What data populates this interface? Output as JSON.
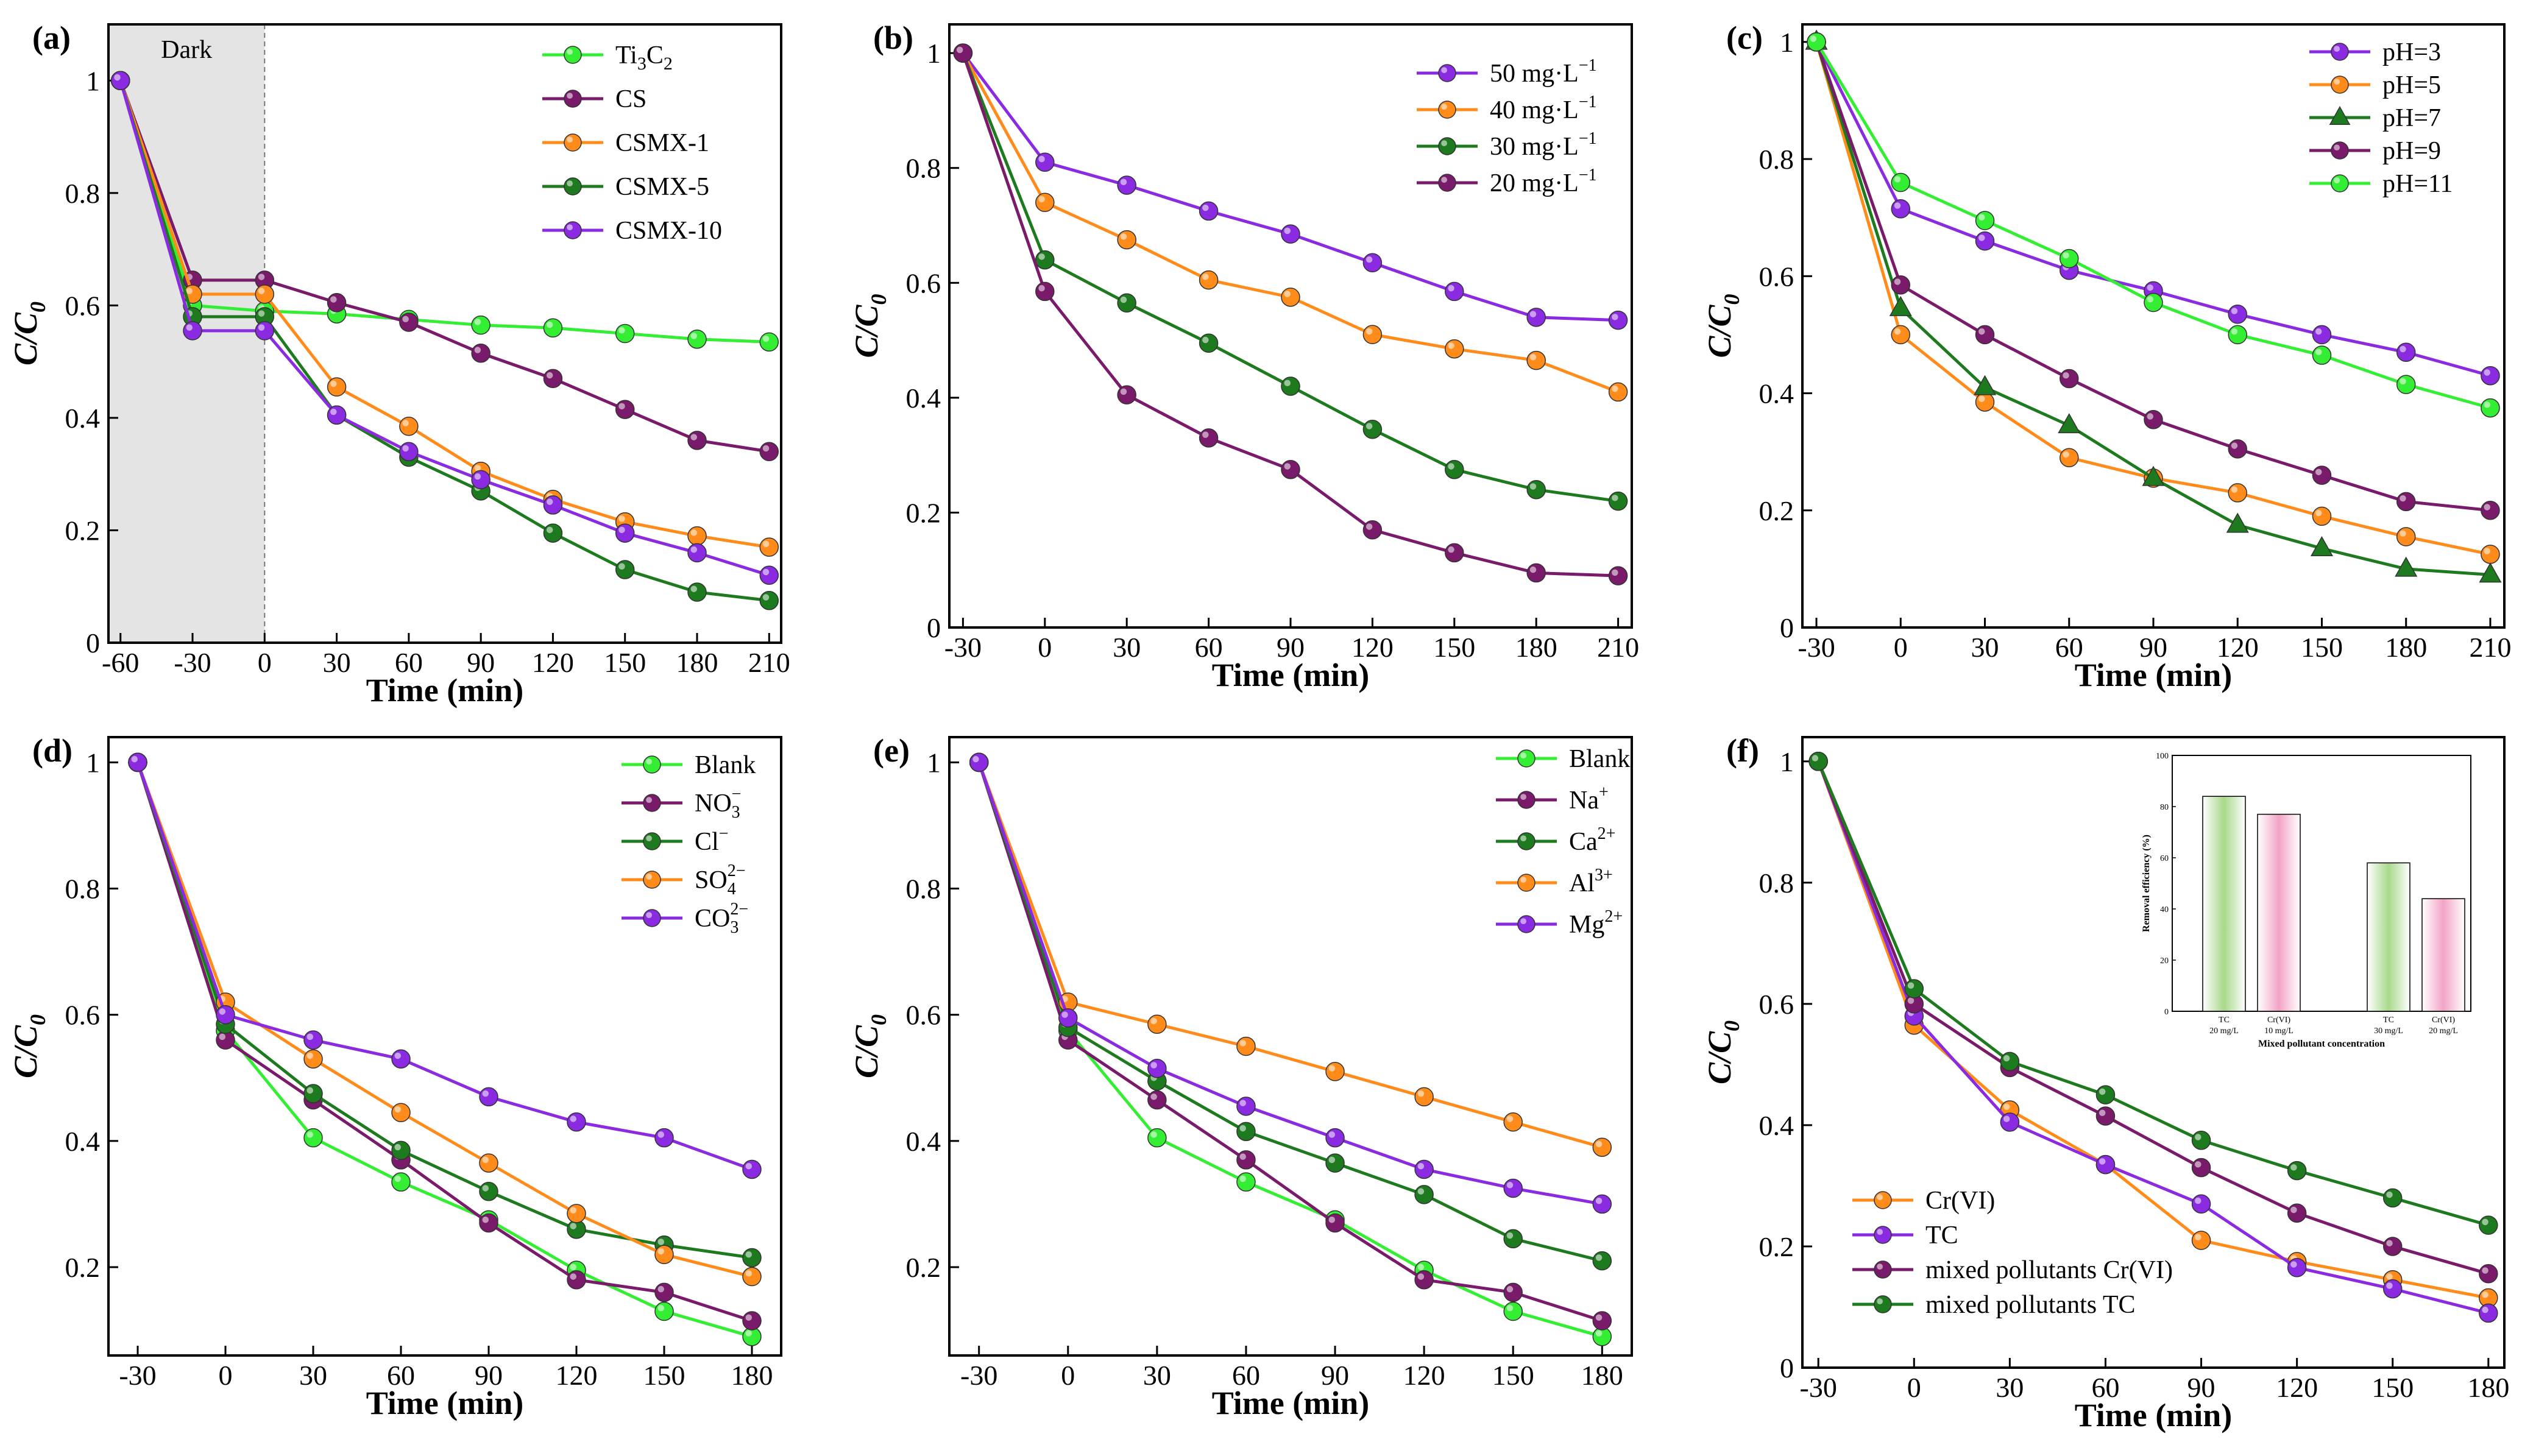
{
  "figure": {
    "panel_count": 6
  },
  "chart_data": [
    {
      "id": "a",
      "panel_label": "(a)",
      "type": "line",
      "xlabel": "Time (min)",
      "ylabel": "C/C0",
      "xlim": [
        -65,
        215
      ],
      "ylim": [
        0,
        1.1
      ],
      "xticks": [
        -60,
        -30,
        0,
        30,
        60,
        90,
        120,
        150,
        180,
        210
      ],
      "yticks": [
        0.0,
        0.2,
        0.4,
        0.6,
        0.8,
        1.0
      ],
      "annotation": {
        "text": "Dark",
        "x_from": -65,
        "x_to": 0,
        "color": "#e4e4e4"
      },
      "legend_position": "top-right",
      "series": [
        {
          "name": "Ti3C2",
          "label_main": "Ti",
          "label_sub": [
            "3",
            "2"
          ],
          "label_parts": [
            "Ti",
            "3",
            "C",
            "2"
          ],
          "color": "#33ee33",
          "marker": "circle",
          "x": [
            -60,
            -30,
            0,
            30,
            60,
            90,
            120,
            150,
            180,
            210
          ],
          "values": [
            1.0,
            0.6,
            0.59,
            0.585,
            0.575,
            0.565,
            0.56,
            0.55,
            0.54,
            0.535
          ]
        },
        {
          "name": "CS",
          "color": "#7a1a6a",
          "marker": "circle",
          "x": [
            -60,
            -30,
            0,
            30,
            60,
            90,
            120,
            150,
            180,
            210
          ],
          "values": [
            1.0,
            0.645,
            0.645,
            0.605,
            0.57,
            0.515,
            0.47,
            0.415,
            0.36,
            0.34
          ]
        },
        {
          "name": "CSMX-1",
          "color": "#ff8c1a",
          "marker": "circle",
          "x": [
            -60,
            -30,
            0,
            30,
            60,
            90,
            120,
            150,
            180,
            210
          ],
          "values": [
            1.0,
            0.62,
            0.62,
            0.455,
            0.385,
            0.305,
            0.255,
            0.215,
            0.19,
            0.17
          ]
        },
        {
          "name": "CSMX-5",
          "color": "#1e7a1e",
          "marker": "circle",
          "x": [
            -60,
            -30,
            0,
            30,
            60,
            90,
            120,
            150,
            180,
            210
          ],
          "values": [
            1.0,
            0.58,
            0.58,
            0.405,
            0.33,
            0.27,
            0.195,
            0.13,
            0.09,
            0.075
          ]
        },
        {
          "name": "CSMX-10",
          "color": "#8a2be2",
          "marker": "circle",
          "x": [
            -60,
            -30,
            0,
            30,
            60,
            90,
            120,
            150,
            180,
            210
          ],
          "values": [
            1.0,
            0.555,
            0.555,
            0.405,
            0.34,
            0.29,
            0.245,
            0.195,
            0.16,
            0.12
          ]
        }
      ]
    },
    {
      "id": "b",
      "panel_label": "(b)",
      "type": "line",
      "xlabel": "Time (min)",
      "ylabel": "C/C0",
      "xlim": [
        -35,
        215
      ],
      "ylim": [
        0,
        1.05
      ],
      "xticks": [
        -30,
        0,
        30,
        60,
        90,
        120,
        150,
        180,
        210
      ],
      "yticks": [
        0.0,
        0.2,
        0.4,
        0.6,
        0.8,
        1.0
      ],
      "legend_position": "top-right",
      "series": [
        {
          "name": "50 mg·L−1",
          "label_main": "50  mg·L",
          "label_sup": "−1",
          "color": "#8a2be2",
          "marker": "circle",
          "x": [
            -30,
            0,
            30,
            60,
            90,
            120,
            150,
            180,
            210
          ],
          "values": [
            1.0,
            0.81,
            0.77,
            0.725,
            0.685,
            0.635,
            0.585,
            0.54,
            0.535
          ]
        },
        {
          "name": "40 mg·L−1",
          "label_main": "40  mg·L",
          "label_sup": "−1",
          "color": "#ff8c1a",
          "marker": "circle",
          "x": [
            -30,
            0,
            30,
            60,
            90,
            120,
            150,
            180,
            210
          ],
          "values": [
            1.0,
            0.74,
            0.675,
            0.605,
            0.575,
            0.51,
            0.485,
            0.465,
            0.41
          ]
        },
        {
          "name": "30 mg·L−1",
          "label_main": "30  mg·L",
          "label_sup": "−1",
          "color": "#1e7a1e",
          "marker": "circle",
          "x": [
            -30,
            0,
            30,
            60,
            90,
            120,
            150,
            180,
            210
          ],
          "values": [
            1.0,
            0.64,
            0.565,
            0.495,
            0.42,
            0.345,
            0.275,
            0.24,
            0.22
          ]
        },
        {
          "name": "20 mg·L−1",
          "label_main": "20  mg·L",
          "label_sup": "−1",
          "color": "#7a1a6a",
          "marker": "circle",
          "x": [
            -30,
            0,
            30,
            60,
            90,
            120,
            150,
            180,
            210
          ],
          "values": [
            1.0,
            0.585,
            0.405,
            0.33,
            0.275,
            0.17,
            0.13,
            0.095,
            0.09
          ]
        }
      ]
    },
    {
      "id": "c",
      "panel_label": "(c)",
      "type": "line",
      "xlabel": "Time (min)",
      "ylabel": "C/C0",
      "xlim": [
        -35,
        215
      ],
      "ylim": [
        0,
        1.03
      ],
      "xticks": [
        -30,
        0,
        30,
        60,
        90,
        120,
        150,
        180,
        210
      ],
      "yticks": [
        0.0,
        0.2,
        0.4,
        0.6,
        0.8,
        1.0
      ],
      "legend_position": "top-right",
      "series": [
        {
          "name": "pH=3",
          "color": "#8a2be2",
          "marker": "circle",
          "x": [
            -30,
            0,
            30,
            60,
            90,
            120,
            150,
            180,
            210
          ],
          "values": [
            1.0,
            0.715,
            0.66,
            0.61,
            0.575,
            0.535,
            0.5,
            0.47,
            0.43
          ]
        },
        {
          "name": "pH=5",
          "color": "#ff8c1a",
          "marker": "circle",
          "x": [
            -30,
            0,
            30,
            60,
            90,
            120,
            150,
            180,
            210
          ],
          "values": [
            1.0,
            0.5,
            0.385,
            0.29,
            0.255,
            0.23,
            0.19,
            0.155,
            0.125
          ]
        },
        {
          "name": "pH=7",
          "color": "#1e7a1e",
          "marker": "triangle",
          "x": [
            -30,
            0,
            30,
            60,
            90,
            120,
            150,
            180,
            210
          ],
          "values": [
            1.0,
            0.545,
            0.41,
            0.345,
            0.255,
            0.175,
            0.135,
            0.1,
            0.09
          ]
        },
        {
          "name": "pH=9",
          "color": "#7a1a6a",
          "marker": "circle",
          "x": [
            -30,
            0,
            30,
            60,
            90,
            120,
            150,
            180,
            210
          ],
          "values": [
            1.0,
            0.585,
            0.5,
            0.425,
            0.355,
            0.305,
            0.26,
            0.215,
            0.2
          ]
        },
        {
          "name": "pH=11",
          "color": "#33ee33",
          "marker": "circle",
          "x": [
            -30,
            0,
            30,
            60,
            90,
            120,
            150,
            180,
            210
          ],
          "values": [
            1.0,
            0.76,
            0.695,
            0.63,
            0.555,
            0.5,
            0.465,
            0.415,
            0.375
          ]
        }
      ]
    },
    {
      "id": "d",
      "panel_label": "(d)",
      "type": "line",
      "xlabel": "Time (min)",
      "ylabel": "C/C0",
      "xlim": [
        -40,
        190
      ],
      "ylim": [
        0.06,
        1.04
      ],
      "xticks": [
        -30,
        0,
        30,
        60,
        90,
        120,
        150,
        180
      ],
      "yticks": [
        0.2,
        0.4,
        0.6,
        0.8,
        1.0
      ],
      "legend_position": "top-right",
      "series": [
        {
          "name": "Blank",
          "color": "#33ee33",
          "marker": "circle",
          "x": [
            -30,
            0,
            30,
            60,
            90,
            120,
            150,
            180
          ],
          "values": [
            1.0,
            0.575,
            0.405,
            0.335,
            0.275,
            0.195,
            0.13,
            0.09
          ]
        },
        {
          "name": "NO3−",
          "label_main": "NO",
          "label_sub": "3",
          "label_sup": "−",
          "color": "#7a1a6a",
          "marker": "circle",
          "x": [
            -30,
            0,
            30,
            60,
            90,
            120,
            150,
            180
          ],
          "values": [
            1.0,
            0.56,
            0.465,
            0.37,
            0.27,
            0.18,
            0.16,
            0.115
          ]
        },
        {
          "name": "Cl−",
          "label_main": "Cl",
          "label_sup": "−",
          "color": "#1e7a1e",
          "marker": "circle",
          "x": [
            -30,
            0,
            30,
            60,
            90,
            120,
            150,
            180
          ],
          "values": [
            1.0,
            0.585,
            0.475,
            0.385,
            0.32,
            0.26,
            0.235,
            0.215
          ]
        },
        {
          "name": "SO42−",
          "label_main": "SO",
          "label_sub": "4",
          "label_sup": "2−",
          "color": "#ff8c1a",
          "marker": "circle",
          "x": [
            -30,
            0,
            30,
            60,
            90,
            120,
            150,
            180
          ],
          "values": [
            1.0,
            0.62,
            0.53,
            0.445,
            0.365,
            0.285,
            0.22,
            0.185
          ]
        },
        {
          "name": "CO32−",
          "label_main": "CO",
          "label_sub": "3",
          "label_sup": "2−",
          "color": "#8a2be2",
          "marker": "circle",
          "x": [
            -30,
            0,
            30,
            60,
            90,
            120,
            150,
            180
          ],
          "values": [
            1.0,
            0.6,
            0.56,
            0.53,
            0.47,
            0.43,
            0.405,
            0.355
          ]
        }
      ]
    },
    {
      "id": "e",
      "panel_label": "(e)",
      "type": "line",
      "xlabel": "Time (min)",
      "ylabel": "C/C0",
      "xlim": [
        -40,
        190
      ],
      "ylim": [
        0.06,
        1.04
      ],
      "xticks": [
        -30,
        0,
        30,
        60,
        90,
        120,
        150,
        180
      ],
      "yticks": [
        0.2,
        0.4,
        0.6,
        0.8,
        1.0
      ],
      "legend_position": "top-right",
      "series": [
        {
          "name": "Blank",
          "color": "#33ee33",
          "marker": "circle",
          "x": [
            -30,
            0,
            30,
            60,
            90,
            120,
            150,
            180
          ],
          "values": [
            1.0,
            0.575,
            0.405,
            0.335,
            0.275,
            0.195,
            0.13,
            0.09
          ]
        },
        {
          "name": "Na+",
          "label_main": "Na",
          "label_sup": "+",
          "color": "#7a1a6a",
          "marker": "circle",
          "x": [
            -30,
            0,
            30,
            60,
            90,
            120,
            150,
            180
          ],
          "values": [
            1.0,
            0.56,
            0.465,
            0.37,
            0.27,
            0.18,
            0.16,
            0.115
          ]
        },
        {
          "name": "Ca2+",
          "label_main": "Ca",
          "label_sup": "2+",
          "color": "#1e7a1e",
          "marker": "circle",
          "x": [
            -30,
            0,
            30,
            60,
            90,
            120,
            150,
            180
          ],
          "values": [
            1.0,
            0.58,
            0.495,
            0.415,
            0.365,
            0.315,
            0.245,
            0.21
          ]
        },
        {
          "name": "Al3+",
          "label_main": "Al",
          "label_sup": "3+",
          "color": "#ff8c1a",
          "marker": "circle",
          "x": [
            -30,
            0,
            30,
            60,
            90,
            120,
            150,
            180
          ],
          "values": [
            1.0,
            0.62,
            0.585,
            0.55,
            0.51,
            0.47,
            0.43,
            0.39
          ]
        },
        {
          "name": "Mg2+",
          "label_main": "Mg",
          "label_sup": "2+",
          "color": "#8a2be2",
          "marker": "circle",
          "x": [
            -30,
            0,
            30,
            60,
            90,
            120,
            150,
            180
          ],
          "values": [
            1.0,
            0.595,
            0.515,
            0.455,
            0.405,
            0.355,
            0.325,
            0.3
          ]
        }
      ]
    },
    {
      "id": "f",
      "panel_label": "(f)",
      "type": "line",
      "xlabel": "Time (min)",
      "ylabel": "C/C0",
      "xlim": [
        -35,
        185
      ],
      "ylim": [
        0,
        1.04
      ],
      "xticks": [
        -30,
        0,
        30,
        60,
        90,
        120,
        150,
        180
      ],
      "yticks": [
        0.0,
        0.2,
        0.4,
        0.6,
        0.8,
        1.0
      ],
      "legend_position": "bottom-left",
      "series": [
        {
          "name": "Cr(VI)",
          "color": "#ff8c1a",
          "marker": "circle",
          "x": [
            -30,
            0,
            30,
            60,
            90,
            120,
            150,
            180
          ],
          "values": [
            1.0,
            0.565,
            0.425,
            0.335,
            0.21,
            0.175,
            0.145,
            0.115
          ]
        },
        {
          "name": "TC",
          "color": "#8a2be2",
          "marker": "circle",
          "x": [
            -30,
            0,
            30,
            60,
            90,
            120,
            150,
            180
          ],
          "values": [
            1.0,
            0.58,
            0.405,
            0.335,
            0.27,
            0.165,
            0.13,
            0.09
          ]
        },
        {
          "name": "mixed pollutants Cr(VI)",
          "color": "#7a1a6a",
          "marker": "circle",
          "x": [
            -30,
            0,
            30,
            60,
            90,
            120,
            150,
            180
          ],
          "values": [
            1.0,
            0.6,
            0.495,
            0.415,
            0.33,
            0.255,
            0.2,
            0.155
          ]
        },
        {
          "name": "mixed pollutants TC",
          "color": "#1e7a1e",
          "marker": "circle",
          "x": [
            -30,
            0,
            30,
            60,
            90,
            120,
            150,
            180
          ],
          "values": [
            1.0,
            0.625,
            0.505,
            0.45,
            0.375,
            0.325,
            0.28,
            0.235
          ]
        }
      ],
      "inset": {
        "type": "bar",
        "ylabel": "Removal efficiency (%)",
        "xlabel": "Mixed pollutant concentration",
        "ylim": [
          0,
          100
        ],
        "yticks": [
          0,
          20,
          40,
          60,
          80,
          100
        ],
        "bars": [
          {
            "name": "TC",
            "conc": "20 mg/L",
            "value": 84,
            "color": "#a8d88a"
          },
          {
            "name": "Cr(VI)",
            "conc": "10 mg/L",
            "value": 77,
            "color": "#f2a3c6"
          },
          {
            "name": "TC",
            "conc": "30 mg/L",
            "value": 58,
            "color": "#a8d88a"
          },
          {
            "name": "Cr(VI)",
            "conc": "20 mg/L",
            "value": 44,
            "color": "#f2a3c6"
          }
        ]
      }
    }
  ]
}
